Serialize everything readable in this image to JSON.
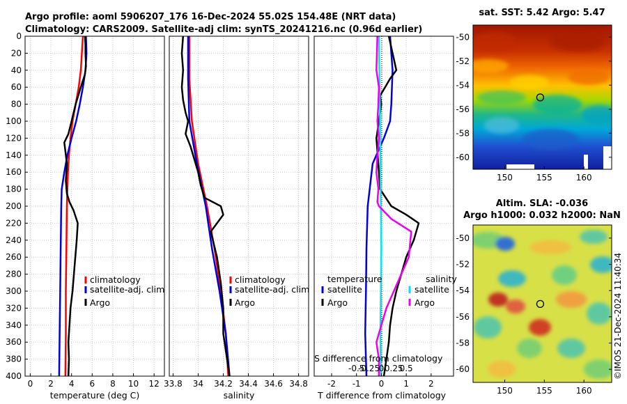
{
  "title": {
    "line1": "Argo profile: aoml 5906207_176 16-Dec-2024 55.02S 154.48E (NRT data)",
    "line2": "Climatology: CARS2009. Satellite-adj clim: synTS_20241216.nc (0.96d earlier)"
  },
  "colors": {
    "climatology": "#ff0000",
    "satellite": "#0000dd",
    "argo": "#000000",
    "s_satellite": "#00e5ee",
    "s_argo": "#ee00ee"
  },
  "chart_data": [
    {
      "type": "line",
      "name": "temperature",
      "xlabel": "temperature (deg C)",
      "ylabel": "",
      "xlim": [
        -0.5,
        13
      ],
      "ylim": [
        400,
        0
      ],
      "x_ticks": [
        "0",
        "2",
        "4",
        "6",
        "8",
        "10",
        "12"
      ],
      "y_ticks": [
        "0",
        "20",
        "40",
        "60",
        "80",
        "100",
        "120",
        "140",
        "160",
        "180",
        "200",
        "220",
        "240",
        "260",
        "280",
        "300",
        "320",
        "340",
        "360",
        "380",
        "400"
      ],
      "grid": true,
      "legend": [
        "climatology",
        "satellite-adj. clim",
        "Argo"
      ],
      "legend_position": "lower-right",
      "series": [
        {
          "name": "climatology",
          "color": "#ff0000",
          "depth": [
            0,
            20,
            40,
            60,
            80,
            100,
            120,
            140,
            160,
            180,
            200,
            250,
            300,
            350,
            400
          ],
          "values": [
            5.1,
            5.0,
            4.9,
            4.7,
            4.4,
            4.1,
            3.9,
            3.75,
            3.65,
            3.6,
            3.55,
            3.5,
            3.45,
            3.45,
            3.4
          ]
        },
        {
          "name": "satellite-adj. clim",
          "color": "#0000dd",
          "depth": [
            0,
            20,
            40,
            60,
            80,
            100,
            120,
            140,
            160,
            180,
            200,
            250,
            300,
            350,
            400
          ],
          "values": [
            5.4,
            5.45,
            5.35,
            5.1,
            4.8,
            4.45,
            4.0,
            3.6,
            3.3,
            3.05,
            3.0,
            2.95,
            2.9,
            2.85,
            2.8
          ]
        },
        {
          "name": "Argo",
          "color": "#000000",
          "depth": [
            0,
            10,
            20,
            35,
            45,
            60,
            80,
            100,
            115,
            125,
            135,
            150,
            170,
            185,
            195,
            205,
            220,
            240,
            270,
            300,
            320,
            340,
            360,
            380,
            400
          ],
          "values": [
            5.3,
            5.35,
            5.35,
            5.4,
            5.3,
            4.9,
            4.4,
            4.0,
            3.7,
            3.3,
            3.4,
            3.55,
            3.45,
            3.55,
            3.8,
            4.2,
            4.6,
            4.5,
            4.3,
            4.1,
            3.9,
            3.8,
            3.7,
            3.75,
            3.7
          ]
        }
      ]
    },
    {
      "type": "line",
      "name": "salinity",
      "xlabel": "salinity",
      "ylabel": "",
      "xlim": [
        33.77,
        34.88
      ],
      "ylim": [
        400,
        0
      ],
      "x_ticks": [
        "33.8",
        "34",
        "34.2",
        "34.4",
        "34.6",
        "34.8"
      ],
      "grid": true,
      "legend": [
        "climatology",
        "satellite-adj. clim",
        "Argo"
      ],
      "legend_position": "lower-right",
      "series": [
        {
          "name": "climatology",
          "color": "#ff0000",
          "depth": [
            0,
            50,
            100,
            150,
            200,
            250,
            300,
            350,
            400
          ],
          "values": [
            33.93,
            33.93,
            33.95,
            34.0,
            34.07,
            34.13,
            34.18,
            34.22,
            34.24
          ]
        },
        {
          "name": "satellite-adj. clim",
          "color": "#0000dd",
          "depth": [
            0,
            50,
            100,
            150,
            200,
            250,
            300,
            350,
            400
          ],
          "values": [
            33.92,
            33.92,
            33.93,
            33.99,
            34.06,
            34.11,
            34.17,
            34.22,
            34.25
          ]
        },
        {
          "name": "Argo",
          "color": "#000000",
          "depth": [
            0,
            20,
            40,
            60,
            75,
            90,
            100,
            115,
            130,
            145,
            160,
            175,
            190,
            200,
            210,
            230,
            260,
            290,
            320,
            350,
            370,
            390,
            400
          ],
          "values": [
            33.88,
            33.87,
            33.88,
            33.87,
            33.88,
            33.9,
            33.92,
            33.9,
            33.94,
            33.97,
            34.0,
            34.02,
            34.05,
            34.18,
            34.2,
            34.1,
            34.15,
            34.18,
            34.2,
            34.2,
            34.22,
            34.24,
            34.25
          ]
        }
      ]
    },
    {
      "type": "line",
      "name": "difference-from-climatology",
      "xlabel": "T difference from climatology",
      "top_axis_label": "S difference from climatology",
      "xlim": [
        -2.7,
        2.9
      ],
      "ylim": [
        400,
        0
      ],
      "x_ticks": [
        "-2",
        "-1",
        "0",
        "1",
        "2"
      ],
      "top_ticks": [
        "-0.5",
        "-0.25",
        "0",
        "0.25",
        "0.5"
      ],
      "grid": true,
      "legend_left_title": "temperature",
      "legend_right_title": "salinity",
      "legend": [
        "satellite",
        "Argo",
        "satellite",
        "Argo"
      ],
      "legend_position": "lower",
      "series": [
        {
          "name": "T satellite",
          "color": "#0000dd",
          "depth": [
            0,
            40,
            80,
            100,
            120,
            150,
            200,
            250,
            300,
            350,
            400
          ],
          "values": [
            0.35,
            0.45,
            0.4,
            0.35,
            0.1,
            -0.35,
            -0.55,
            -0.6,
            -0.62,
            -0.65,
            -0.6
          ]
        },
        {
          "name": "T Argo",
          "color": "#000000",
          "depth": [
            0,
            20,
            40,
            50,
            60,
            70,
            80,
            100,
            120,
            140,
            160,
            180,
            200,
            210,
            220,
            240,
            260,
            280,
            300,
            320,
            340,
            360,
            380,
            400
          ],
          "values": [
            0.3,
            0.45,
            0.6,
            0.35,
            0.15,
            -0.05,
            0.0,
            -0.1,
            -0.2,
            -0.15,
            -0.1,
            -0.05,
            0.4,
            1.0,
            1.5,
            1.3,
            1.0,
            0.8,
            0.6,
            0.45,
            0.35,
            0.3,
            0.2,
            0.1
          ]
        },
        {
          "name": "S satellite",
          "color": "#00e5ee",
          "depth": [
            0,
            80,
            150,
            200,
            250,
            300,
            350,
            400
          ],
          "values": [
            -0.05,
            -0.03,
            -0.02,
            -0.01,
            0.0,
            -0.01,
            -0.02,
            -0.01
          ]
        },
        {
          "name": "S Argo",
          "color": "#ee00ee",
          "depth": [
            0,
            40,
            60,
            80,
            100,
            120,
            140,
            160,
            180,
            195,
            200,
            215,
            230,
            260,
            280,
            300,
            320,
            340,
            360,
            380,
            400
          ],
          "values": [
            -0.08,
            -0.1,
            -0.05,
            -0.06,
            -0.08,
            -0.05,
            -0.08,
            -0.1,
            -0.06,
            -0.08,
            -0.05,
            0.2,
            0.6,
            0.55,
            0.4,
            0.25,
            0.1,
            0.0,
            -0.1,
            -0.05,
            -0.05
          ]
        }
      ]
    },
    {
      "type": "heatmap",
      "name": "satellite-sst-map",
      "title": "sat. SST: 5.42 Argo: 5.47",
      "x_ticks": [
        "150",
        "155",
        "160"
      ],
      "y_ticks": [
        "-50",
        "-52",
        "-54",
        "-56",
        "-58",
        "-60"
      ],
      "xlim": [
        146,
        163.5
      ],
      "ylim": [
        -61,
        -49
      ],
      "argo_marker": {
        "lon": 154.48,
        "lat": -55.02
      }
    },
    {
      "type": "heatmap",
      "name": "altimetry-sla-map",
      "title_line1": "Altim. SLA: -0.036",
      "title_line2": "Argo h1000: 0.032 h2000: NaN",
      "x_ticks": [
        "150",
        "155",
        "160"
      ],
      "y_ticks": [
        "-50",
        "-52",
        "-54",
        "-56",
        "-58",
        "-60"
      ],
      "xlim": [
        146,
        163.5
      ],
      "ylim": [
        -61,
        -49
      ],
      "argo_marker": {
        "lon": 154.48,
        "lat": -55.02
      }
    }
  ],
  "watermark": "©IMOS 21-Dec-2024 11:40:34"
}
